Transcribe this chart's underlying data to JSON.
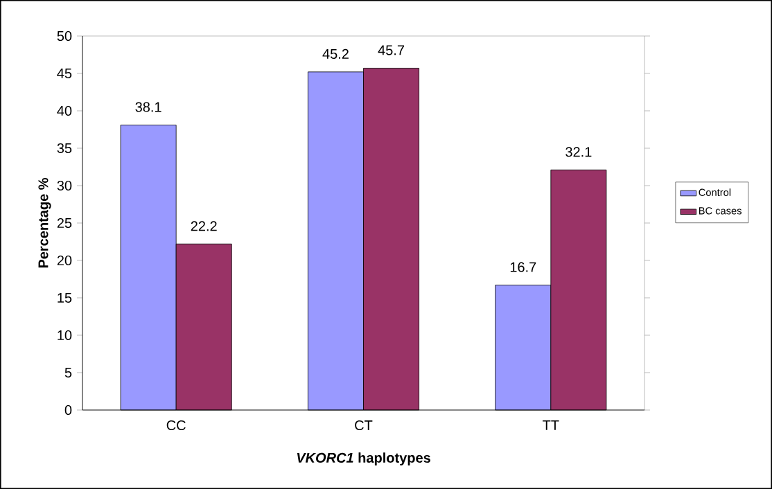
{
  "chart_data": {
    "type": "bar",
    "xlabel": "*VKORC1* haplotypes",
    "ylabel": "Percentage %",
    "categories": [
      "CC",
      "CT",
      "TT"
    ],
    "series": [
      {
        "name": "Control",
        "color": "#9999ff",
        "values": [
          38.1,
          45.2,
          16.7
        ]
      },
      {
        "name": "BC cases",
        "color": "#993366",
        "values": [
          22.2,
          45.7,
          32.1
        ]
      }
    ],
    "ylim": [
      0,
      50
    ],
    "yticks": [
      0,
      5,
      10,
      15,
      20,
      25,
      30,
      35,
      40,
      45,
      50
    ],
    "grid": false,
    "legend": "right",
    "data_labels": true
  }
}
